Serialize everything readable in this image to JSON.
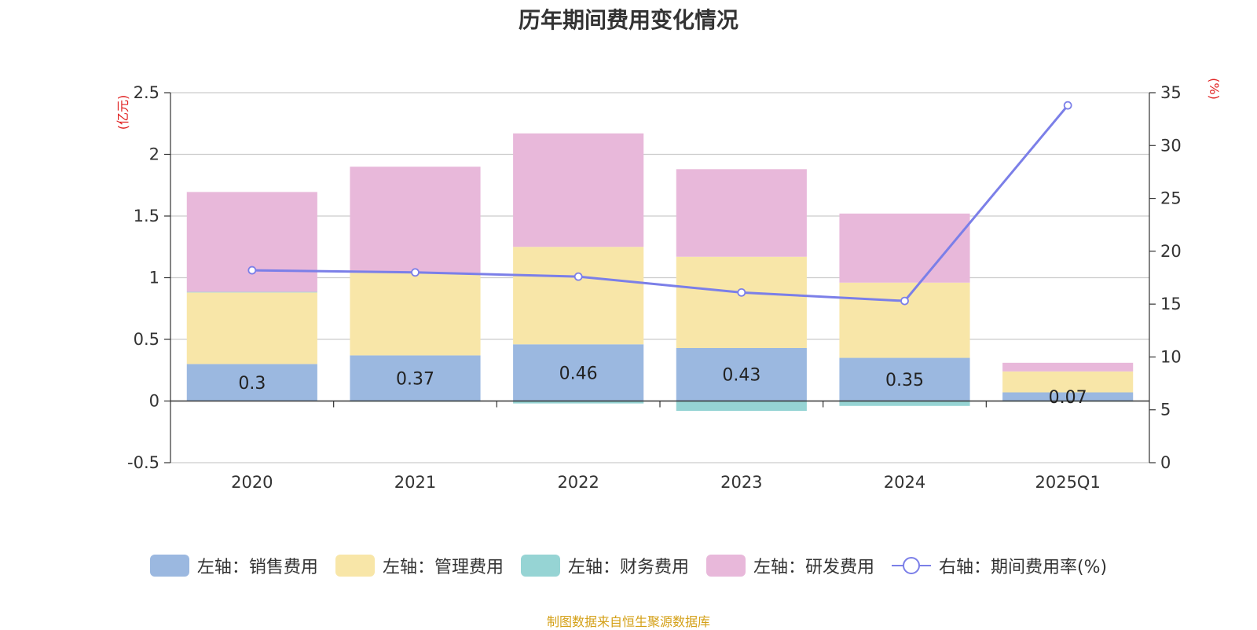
{
  "chart_data": {
    "type": "bar",
    "title": "历年期间费用变化情况",
    "categories": [
      "2020",
      "2021",
      "2022",
      "2023",
      "2024",
      "2025Q1"
    ],
    "left_axis": {
      "unit_label": "(亿元)",
      "ylim": [
        -0.5,
        2.5
      ],
      "ticks": [
        -0.5,
        0,
        0.5,
        1,
        1.5,
        2,
        2.5
      ],
      "tick_labels": [
        "-0.5",
        "0",
        "0.5",
        "1",
        "1.5",
        "2",
        "2.5"
      ]
    },
    "right_axis": {
      "unit_label": "(%)",
      "ylim": [
        0,
        35
      ],
      "ticks": [
        0,
        5,
        10,
        15,
        20,
        25,
        30,
        35
      ],
      "tick_labels": [
        "0",
        "5",
        "10",
        "15",
        "20",
        "25",
        "30",
        "35"
      ]
    },
    "series": [
      {
        "name": "左轴：销售费用",
        "type": "bar",
        "axis": "left",
        "color": "#9bb8e0",
        "values": [
          0.3,
          0.37,
          0.46,
          0.43,
          0.35,
          0.07
        ],
        "labels": [
          "0.3",
          "0.37",
          "0.46",
          "0.43",
          "0.35",
          "0.07"
        ]
      },
      {
        "name": "左轴：管理费用",
        "type": "bar",
        "axis": "left",
        "color": "#f8e6a8",
        "values": [
          0.58,
          0.67,
          0.79,
          0.74,
          0.61,
          0.17
        ]
      },
      {
        "name": "左轴：财务费用",
        "type": "bar",
        "axis": "left",
        "color": "#96d4d4",
        "values": [
          0.005,
          -0.005,
          -0.02,
          -0.08,
          -0.04,
          -0.005
        ]
      },
      {
        "name": "左轴：研发费用",
        "type": "bar",
        "axis": "left",
        "color": "#e8b8da",
        "values": [
          0.81,
          0.86,
          0.92,
          0.71,
          0.56,
          0.07
        ]
      },
      {
        "name": "右轴：期间费用率(%)",
        "type": "line",
        "axis": "right",
        "color": "#7b7fe8",
        "values": [
          18.2,
          18.0,
          17.6,
          16.1,
          15.3,
          33.8
        ]
      }
    ]
  },
  "source_text": "制图数据来自恒生聚源数据库"
}
